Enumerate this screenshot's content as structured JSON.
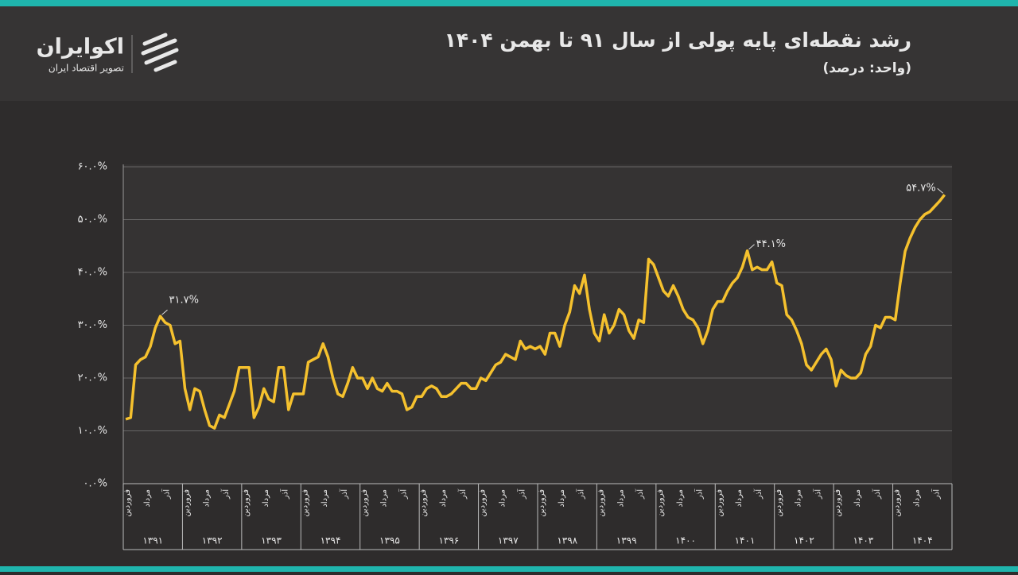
{
  "header": {
    "brand": "اکوایران",
    "tagline": "تصویر اقتصاد ایران"
  },
  "chart_data": {
    "type": "line",
    "title": "رشد نقطه‌ای پایه پولی از سال ۹۱ تا بهمن ۱۴۰۴",
    "subtitle": "(واحد: درصد)",
    "color": "#f5c12e",
    "grid": true,
    "ylim": [
      0,
      60
    ],
    "yticks": [
      {
        "value": 0,
        "label": "۰.۰%"
      },
      {
        "value": 10,
        "label": "۱۰.۰%"
      },
      {
        "value": 20,
        "label": "۲۰.۰%"
      },
      {
        "value": 30,
        "label": "۳۰.۰%"
      },
      {
        "value": 40,
        "label": "۴۰.۰%"
      },
      {
        "value": 50,
        "label": "۵۰.۰%"
      },
      {
        "value": 60,
        "label": "۶۰.۰%"
      }
    ],
    "years": [
      "۱۳۹۱",
      "۱۳۹۲",
      "۱۳۹۳",
      "۱۳۹۴",
      "۱۳۹۵",
      "۱۳۹۶",
      "۱۳۹۷",
      "۱۳۹۸",
      "۱۳۹۹",
      "۱۴۰۰",
      "۱۴۰۱",
      "۱۴۰۲",
      "۱۴۰۳",
      "۱۴۰۴"
    ],
    "categories": [
      "فروردین",
      null,
      null,
      null,
      "مرداد",
      null,
      null,
      null,
      "آذر",
      null,
      null,
      null,
      "فروردین",
      null,
      null,
      null,
      "مرداد",
      null,
      null,
      null,
      "آذر",
      null,
      null,
      null,
      "فروردین",
      null,
      null,
      null,
      "مرداد",
      null,
      null,
      null,
      "آذر",
      null,
      null,
      null,
      "فروردین",
      null,
      null,
      null,
      "مرداد",
      null,
      null,
      null,
      "آذر",
      null,
      null,
      null,
      "فروردین",
      null,
      null,
      null,
      "مرداد",
      null,
      null,
      null,
      "آذر",
      null,
      null,
      null,
      "فروردین",
      null,
      null,
      null,
      "مرداد",
      null,
      null,
      null,
      "آذر",
      null,
      null,
      null,
      "فروردین",
      null,
      null,
      null,
      "مرداد",
      null,
      null,
      null,
      "آذر",
      null,
      null,
      null,
      "فروردین",
      null,
      null,
      null,
      "مرداد",
      null,
      null,
      null,
      "آذر",
      null,
      null,
      null,
      "فروردین",
      null,
      null,
      null,
      "مرداد",
      null,
      null,
      null,
      "آذر",
      null,
      null,
      null,
      "فروردین",
      null,
      null,
      null,
      "مرداد",
      null,
      null,
      null,
      "آذر",
      null,
      null,
      null,
      "فروردین",
      null,
      null,
      null,
      "مرداد",
      null,
      null,
      null,
      "آذر",
      null,
      null,
      null,
      "فروردین",
      null,
      null,
      null,
      "مرداد",
      null,
      null,
      null,
      "آذر",
      null,
      null,
      null,
      "فروردین",
      null,
      null,
      null,
      "مرداد",
      null,
      null,
      null,
      "آذر",
      null,
      null,
      null,
      "فروردین",
      null,
      null,
      null,
      "مرداد",
      null,
      null,
      null,
      "آذر",
      null,
      null
    ],
    "values": [
      12.2,
      12.5,
      22.5,
      23.5,
      24,
      26,
      29.5,
      31.7,
      30.5,
      30,
      26.5,
      27,
      18,
      14,
      18,
      17.5,
      14,
      11,
      10.5,
      13,
      12.5,
      15,
      17.5,
      22,
      22,
      22,
      12.5,
      14.5,
      18,
      16,
      15.5,
      22,
      22,
      14,
      17,
      17,
      17,
      23,
      23.5,
      24,
      26.5,
      24,
      20,
      17,
      16.5,
      19,
      22,
      20,
      20,
      18,
      20,
      18,
      17.5,
      19,
      17.5,
      17.5,
      17,
      14,
      14.5,
      16.5,
      16.5,
      18,
      18.5,
      18,
      16.5,
      16.5,
      17,
      18,
      19,
      19,
      18,
      18,
      20,
      19.5,
      21,
      22.5,
      23,
      24.5,
      24,
      23.5,
      27,
      25.5,
      26,
      25.5,
      26,
      24.5,
      28.5,
      28.5,
      26,
      30,
      32.5,
      37.5,
      36,
      39.5,
      33,
      28.5,
      27,
      32,
      28.5,
      30,
      33,
      32,
      29,
      27.5,
      31,
      30.5,
      42.5,
      41.5,
      39,
      36.5,
      35.5,
      37.5,
      35.5,
      33,
      31.5,
      31,
      29.5,
      26.5,
      29,
      33,
      34.5,
      34.5,
      36.5,
      38,
      39,
      41,
      44.1,
      40.5,
      41,
      40.5,
      40.5,
      42,
      38,
      37.5,
      32,
      31,
      29,
      26.5,
      22.5,
      21.5,
      23,
      24.5,
      25.5,
      23.5,
      18.5,
      21.5,
      20.5,
      20,
      20,
      21,
      24.5,
      26,
      30,
      29.5,
      31.5,
      31.5,
      31,
      38,
      44,
      46.5,
      48.5,
      50,
      51,
      51.5,
      52.5,
      53.5,
      54.7
    ],
    "value_labels": [
      null,
      null,
      null,
      null,
      null,
      null,
      null,
      "۳۱.۷%",
      null,
      null,
      null,
      null,
      null,
      null,
      null,
      null,
      null,
      null,
      null,
      null,
      null,
      null,
      null,
      null,
      null,
      null,
      null,
      null,
      null,
      null,
      null,
      null,
      null,
      null,
      null,
      null,
      null,
      null,
      null,
      null,
      null,
      null,
      null,
      null,
      null,
      null,
      null,
      null,
      null,
      null,
      null,
      null,
      null,
      null,
      null,
      null,
      null,
      null,
      null,
      null,
      null,
      null,
      null,
      null,
      null,
      null,
      null,
      null,
      null,
      null,
      null,
      null,
      null,
      null,
      null,
      null,
      null,
      null,
      null,
      null,
      null,
      null,
      null,
      null,
      null,
      null,
      null,
      null,
      null,
      null,
      null,
      null,
      null,
      null,
      null,
      null,
      null,
      null,
      null,
      null,
      null,
      null,
      null,
      null,
      null,
      null,
      null,
      null,
      null,
      null,
      null,
      null,
      null,
      null,
      null,
      null,
      null,
      null,
      null,
      null,
      null,
      null,
      null,
      null,
      null,
      null,
      "۴۴.۱%",
      null,
      null,
      null,
      null,
      null,
      null,
      null,
      null,
      null,
      null,
      null,
      null,
      null,
      null,
      null,
      null,
      null,
      null,
      null,
      null,
      null,
      null,
      null,
      null,
      null,
      null,
      null,
      null,
      null,
      null,
      null,
      null,
      null,
      null,
      null,
      null,
      null,
      null,
      null,
      "۵۴.۷%"
    ]
  }
}
